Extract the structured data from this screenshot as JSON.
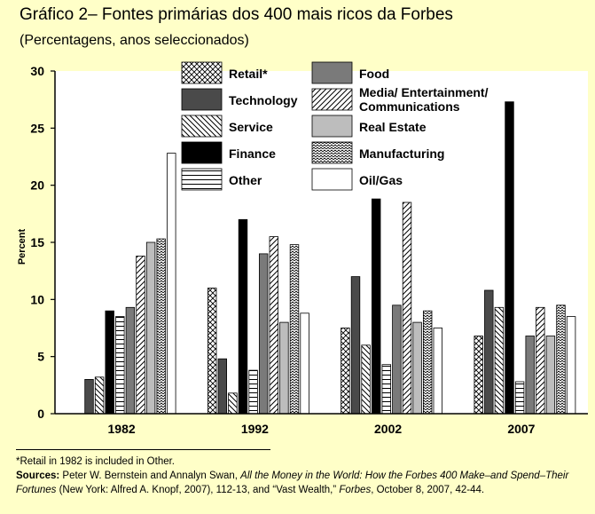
{
  "title": "Gráfico 2– Fontes primárias dos 400 mais ricos da Forbes",
  "subtitle": "(Percentagens, anos seleccionados)",
  "chart_data": {
    "type": "bar",
    "ylabel": "Percent",
    "xlabel": "",
    "ylim": [
      0,
      30
    ],
    "yticks": [
      "0",
      "5",
      "10",
      "15",
      "20",
      "25",
      "30"
    ],
    "grid": false,
    "legend": "top, inside plot, two columns",
    "categories": [
      "1982",
      "1992",
      "2002",
      "2007"
    ],
    "series": [
      {
        "name": "Retail*",
        "pattern": "crosshatch",
        "values": [
          null,
          11.0,
          7.5,
          6.8
        ]
      },
      {
        "name": "Technology",
        "pattern": "dark-gray",
        "values": [
          3.0,
          4.8,
          12.0,
          10.8
        ]
      },
      {
        "name": "Service",
        "pattern": "back-diagonal",
        "values": [
          3.2,
          1.8,
          6.0,
          9.3
        ]
      },
      {
        "name": "Finance",
        "pattern": "black",
        "values": [
          9.0,
          17.0,
          18.8,
          27.3
        ]
      },
      {
        "name": "Other",
        "pattern": "horizontal-lines",
        "values": [
          8.5,
          3.8,
          4.3,
          2.8
        ]
      },
      {
        "name": "Food",
        "pattern": "medium-gray",
        "values": [
          9.3,
          14.0,
          9.5,
          6.8
        ]
      },
      {
        "name": "Media/ Entertainment/ Communications",
        "pattern": "forward-diagonal",
        "values": [
          13.8,
          15.5,
          18.5,
          9.3
        ]
      },
      {
        "name": "Real Estate",
        "pattern": "light-gray",
        "values": [
          15.0,
          8.0,
          8.0,
          6.8
        ]
      },
      {
        "name": "Manufacturing",
        "pattern": "wavy",
        "values": [
          15.3,
          14.8,
          9.0,
          9.5
        ]
      },
      {
        "name": "Oil/Gas",
        "pattern": "white",
        "values": [
          22.8,
          8.8,
          7.5,
          8.5
        ]
      }
    ]
  },
  "footer": {
    "footnote": "*Retail in 1982 is included in Other.",
    "sources_label": "Sources:",
    "sources_part1": "Peter W. Bernstein and Annalyn Swan,",
    "sources_book": "All the Money in the World: How the Forbes 400 Make–and Spend–Their Fortunes",
    "sources_part2": "(New York: Alfred A. Knopf, 2007), 112-13, and “Vast Wealth,”",
    "sources_mag": "Forbes",
    "sources_part3": ", October 8, 2007, 42-44."
  }
}
